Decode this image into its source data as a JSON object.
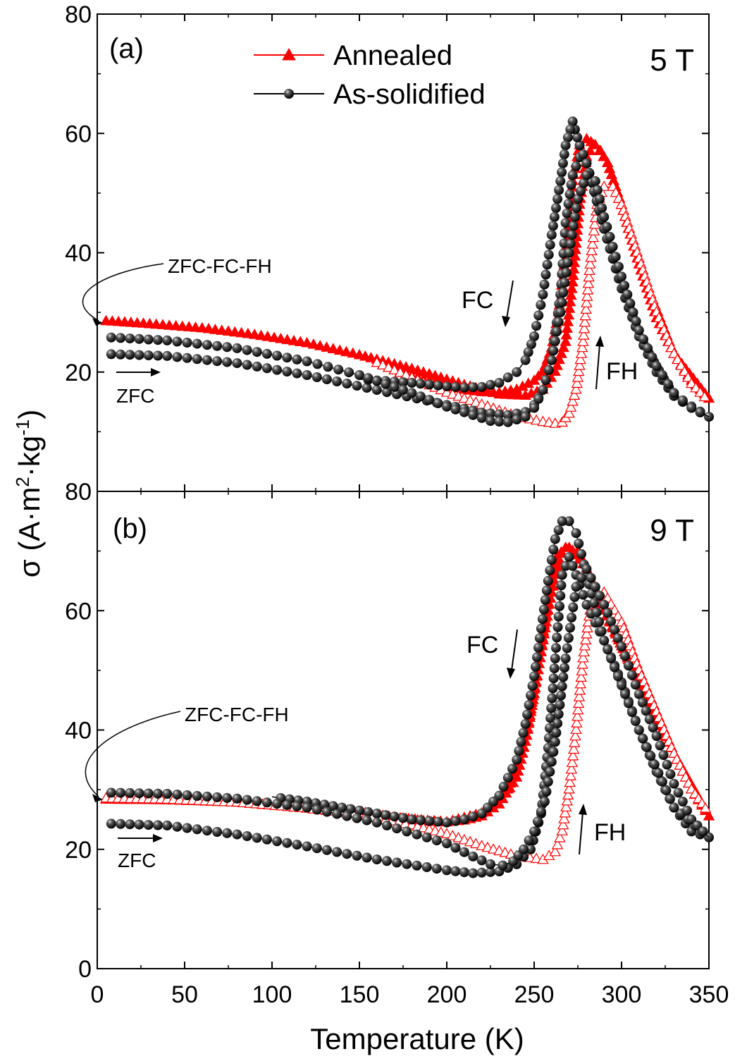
{
  "chart_data": [
    {
      "type": "line",
      "panel_label": "(a)",
      "field_label": "5 T",
      "x_range": [
        0,
        350
      ],
      "y_range": [
        0,
        80
      ],
      "x_ticks": [
        0,
        50,
        100,
        150,
        200,
        250,
        300,
        350
      ],
      "y_ticks": [
        20,
        40,
        60,
        80
      ],
      "series": [
        {
          "name": "Annealed",
          "color": "#ff0000",
          "marker": "triangle",
          "curves": [
            {
              "label": "ZFC",
              "x": [
                5,
                30,
                60,
                90,
                120,
                150,
                180,
                210,
                230,
                245,
                255,
                262,
                268,
                272,
                276,
                280,
                284,
                288,
                292,
                300,
                310,
                320,
                330,
                340,
                350
              ],
              "y": [
                28.5,
                28,
                27.3,
                26.2,
                24.8,
                22.8,
                20.5,
                17.8,
                16.2,
                16,
                17,
                20,
                25,
                35,
                48,
                56,
                58,
                57,
                55,
                48,
                38,
                29,
                23,
                18.5,
                15.5
              ]
            },
            {
              "label": "FC",
              "x": [
                350,
                330,
                310,
                300,
                292,
                285,
                280,
                276,
                272,
                268,
                264,
                260,
                255,
                250,
                240,
                230,
                220,
                210,
                200,
                190,
                180,
                170,
                160
              ],
              "y": [
                15.5,
                23,
                38,
                48,
                55,
                58,
                59,
                58,
                52,
                40,
                30,
                24,
                20,
                18.5,
                17,
                16.5,
                16.6,
                17,
                17.6,
                18.4,
                19.3,
                20.3,
                21.5
              ]
            },
            {
              "label": "FH",
              "x": [
                160,
                180,
                200,
                220,
                240,
                255,
                262,
                266,
                270,
                274,
                278,
                282,
                286,
                290,
                295,
                300,
                310,
                320,
                330,
                340,
                350
              ],
              "y": [
                21.5,
                19,
                16.5,
                14.5,
                12.5,
                11.6,
                11.3,
                11.5,
                13,
                17,
                25,
                38,
                48,
                51,
                51,
                48,
                39,
                30,
                23,
                18,
                15
              ]
            }
          ]
        },
        {
          "name": "As-solidified",
          "color": "#000000",
          "marker": "circle",
          "curves": [
            {
              "label": "ZFC",
              "x": [
                8,
                40,
                80,
                120,
                160,
                200,
                220,
                235,
                245,
                250,
                255,
                260,
                265,
                268,
                272,
                276,
                280,
                285,
                290,
                300,
                310,
                320,
                330,
                340,
                350
              ],
              "y": [
                23,
                22.7,
                21.5,
                19.5,
                17,
                14.5,
                13.2,
                12.8,
                13.3,
                14.5,
                17,
                22,
                33,
                45,
                53,
                56,
                55,
                50,
                44,
                34,
                26,
                20,
                16,
                14,
                12.5
              ]
            },
            {
              "label": "FC",
              "x": [
                350,
                330,
                310,
                290,
                280,
                276,
                272,
                268,
                265,
                260,
                255,
                250,
                245,
                240,
                230,
                220,
                210,
                200,
                190,
                180,
                170,
                160,
                150
              ],
              "y": [
                12.5,
                16,
                26,
                44,
                55,
                58,
                62,
                58,
                52,
                43,
                33,
                26,
                22,
                20,
                18.2,
                17.5,
                17.4,
                17.6,
                17.9,
                18.2,
                18.4,
                18.6,
                18.8
              ]
            },
            {
              "label": "FH",
              "x": [
                8,
                40,
                80,
                120,
                150,
                180,
                200,
                215,
                225,
                235,
                245,
                250,
                255,
                260,
                265,
                270,
                275,
                280,
                285,
                290,
                300,
                310,
                320,
                330,
                340,
                350
              ],
              "y": [
                25.8,
                25.3,
                24,
                21.8,
                19.5,
                16.5,
                14.2,
                12.8,
                11.8,
                11.6,
                12.5,
                14,
                17,
                22,
                30,
                40,
                49,
                53,
                52,
                46,
                36,
                27,
                21,
                16.5,
                14,
                12.5
              ]
            }
          ]
        }
      ],
      "annotations": [
        {
          "text": "ZFC-FC-FH",
          "size": "small"
        },
        {
          "text": "ZFC",
          "size": "small"
        },
        {
          "text": "FC",
          "size": "big"
        },
        {
          "text": "FH",
          "size": "big"
        }
      ]
    },
    {
      "type": "line",
      "panel_label": "(b)",
      "field_label": "9 T",
      "x_range": [
        0,
        350
      ],
      "y_range": [
        0,
        80
      ],
      "x_ticks": [
        0,
        50,
        100,
        150,
        200,
        250,
        300,
        350
      ],
      "y_ticks": [
        0,
        20,
        40,
        60,
        80
      ],
      "series": [
        {
          "name": "Annealed",
          "color": "#ff0000",
          "marker": "triangle",
          "curves": [
            {
              "label": "ZFC",
              "x": [
                5,
                40,
                80,
                120,
                160,
                200,
                220,
                235,
                245,
                252,
                258,
                263,
                268,
                272,
                276,
                280,
                290,
                300,
                310,
                320,
                330,
                340,
                350
              ],
              "y": [
                28.3,
                28.2,
                27.8,
                26.8,
                25.5,
                24.5,
                26,
                30,
                38,
                50,
                62,
                69,
                70.5,
                70,
                68.5,
                67,
                60,
                54,
                48,
                42,
                36,
                30,
                25.5
              ]
            },
            {
              "label": "FC",
              "x": [
                350,
                330,
                310,
                290,
                280,
                275,
                270,
                266,
                262,
                258,
                254,
                250,
                245,
                240,
                230,
                220,
                210,
                200,
                190,
                170,
                150,
                130
              ],
              "y": [
                25.5,
                36,
                48,
                60,
                67,
                70,
                70.5,
                69.5,
                66,
                60,
                53,
                46,
                38,
                32,
                27.5,
                25.5,
                24.8,
                24.5,
                24.6,
                25.3,
                26.2,
                27.1
              ]
            },
            {
              "label": "FH",
              "x": [
                5,
                40,
                80,
                120,
                150,
                180,
                200,
                220,
                240,
                255,
                262,
                266,
                270,
                274,
                278,
                282,
                286,
                290,
                300,
                310,
                320,
                330,
                340,
                350
              ],
              "y": [
                28.5,
                28.3,
                27.8,
                26.8,
                25.8,
                24,
                22.5,
                20.5,
                18.8,
                18.2,
                19.5,
                23,
                30,
                40,
                52,
                60,
                63,
                63,
                58,
                50,
                43,
                36,
                30,
                26
              ]
            }
          ]
        },
        {
          "name": "As-solidified",
          "color": "#000000",
          "marker": "circle",
          "curves": [
            {
              "label": "ZFC",
              "x": [
                8,
                40,
                80,
                120,
                160,
                200,
                215,
                230,
                240,
                248,
                254,
                258,
                262,
                266,
                270,
                274,
                280,
                290,
                300,
                310,
                320,
                330,
                340,
                350
              ],
              "y": [
                24.3,
                24,
                22.5,
                20.5,
                18.3,
                16.5,
                16,
                16.3,
                17.5,
                20,
                26,
                37,
                52,
                66,
                69,
                66,
                61,
                55,
                48,
                40,
                33,
                27,
                23,
                22
              ]
            },
            {
              "label": "FC",
              "x": [
                350,
                330,
                310,
                290,
                280,
                274,
                270,
                266,
                262,
                258,
                254,
                250,
                245,
                240,
                230,
                220,
                210,
                200,
                180,
                160,
                140,
                120,
                100
              ],
              "y": [
                22,
                27,
                40,
                55,
                66,
                73,
                75,
                75,
                72,
                65,
                57,
                49,
                41,
                35,
                29,
                26,
                25,
                24.5,
                25,
                26,
                27,
                28,
                28.8
              ]
            },
            {
              "label": "FH",
              "x": [
                8,
                40,
                80,
                120,
                160,
                200,
                215,
                225,
                232,
                238,
                244,
                250,
                256,
                262,
                268,
                274,
                280,
                290,
                300,
                310,
                320,
                330,
                340,
                350
              ],
              "y": [
                29.5,
                29.3,
                28.5,
                27,
                24.5,
                21,
                18.8,
                17.5,
                17.3,
                18,
                20,
                23,
                28,
                38,
                52,
                64,
                67,
                61,
                54,
                46,
                39,
                31,
                25,
                22
              ]
            }
          ]
        }
      ],
      "annotations": [
        {
          "text": "ZFC-FC-FH",
          "size": "small"
        },
        {
          "text": "ZFC",
          "size": "small"
        },
        {
          "text": "FC",
          "size": "big"
        },
        {
          "text": "FH",
          "size": "big"
        }
      ]
    }
  ],
  "shared": {
    "xlabel": "Temperature (K)",
    "ylabel_prefix": "σ (A·m",
    "ylabel_sup1": "2",
    "ylabel_mid": "·kg",
    "ylabel_sup2": "-1",
    "ylabel_suffix": ")",
    "legend": [
      {
        "label": "Annealed",
        "color": "#ff0000",
        "marker": "triangle"
      },
      {
        "label": "As-solidified",
        "color": "#000000",
        "marker": "circle"
      }
    ]
  }
}
